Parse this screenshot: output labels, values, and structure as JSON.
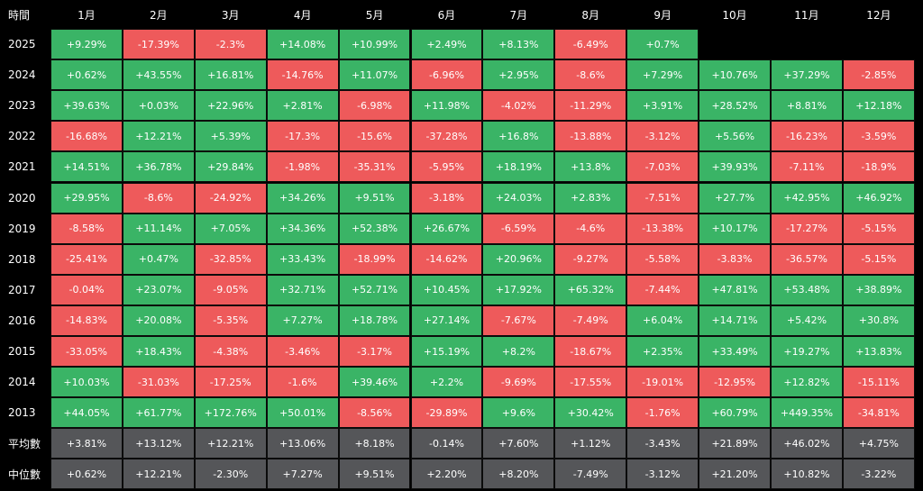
{
  "colors": {
    "positive": "#3ab466",
    "negative": "#ee5a5b",
    "summary": "#555659",
    "background": "#000000"
  },
  "chart_data": {
    "type": "table",
    "corner_label": "時間",
    "columns": [
      "1月",
      "2月",
      "3月",
      "4月",
      "5月",
      "6月",
      "7月",
      "8月",
      "9月",
      "10月",
      "11月",
      "12月"
    ],
    "rows": [
      {
        "label": "2025",
        "values": [
          "+9.29%",
          "-17.39%",
          "-2.3%",
          "+14.08%",
          "+10.99%",
          "+2.49%",
          "+8.13%",
          "-6.49%",
          "+0.7%",
          null,
          null,
          null
        ]
      },
      {
        "label": "2024",
        "values": [
          "+0.62%",
          "+43.55%",
          "+16.81%",
          "-14.76%",
          "+11.07%",
          "-6.96%",
          "+2.95%",
          "-8.6%",
          "+7.29%",
          "+10.76%",
          "+37.29%",
          "-2.85%"
        ]
      },
      {
        "label": "2023",
        "values": [
          "+39.63%",
          "+0.03%",
          "+22.96%",
          "+2.81%",
          "-6.98%",
          "+11.98%",
          "-4.02%",
          "-11.29%",
          "+3.91%",
          "+28.52%",
          "+8.81%",
          "+12.18%"
        ]
      },
      {
        "label": "2022",
        "values": [
          "-16.68%",
          "+12.21%",
          "+5.39%",
          "-17.3%",
          "-15.6%",
          "-37.28%",
          "+16.8%",
          "-13.88%",
          "-3.12%",
          "+5.56%",
          "-16.23%",
          "-3.59%"
        ]
      },
      {
        "label": "2021",
        "values": [
          "+14.51%",
          "+36.78%",
          "+29.84%",
          "-1.98%",
          "-35.31%",
          "-5.95%",
          "+18.19%",
          "+13.8%",
          "-7.03%",
          "+39.93%",
          "-7.11%",
          "-18.9%"
        ]
      },
      {
        "label": "2020",
        "values": [
          "+29.95%",
          "-8.6%",
          "-24.92%",
          "+34.26%",
          "+9.51%",
          "-3.18%",
          "+24.03%",
          "+2.83%",
          "-7.51%",
          "+27.7%",
          "+42.95%",
          "+46.92%"
        ]
      },
      {
        "label": "2019",
        "values": [
          "-8.58%",
          "+11.14%",
          "+7.05%",
          "+34.36%",
          "+52.38%",
          "+26.67%",
          "-6.59%",
          "-4.6%",
          "-13.38%",
          "+10.17%",
          "-17.27%",
          "-5.15%"
        ]
      },
      {
        "label": "2018",
        "values": [
          "-25.41%",
          "+0.47%",
          "-32.85%",
          "+33.43%",
          "-18.99%",
          "-14.62%",
          "+20.96%",
          "-9.27%",
          "-5.58%",
          "-3.83%",
          "-36.57%",
          "-5.15%"
        ]
      },
      {
        "label": "2017",
        "values": [
          "-0.04%",
          "+23.07%",
          "-9.05%",
          "+32.71%",
          "+52.71%",
          "+10.45%",
          "+17.92%",
          "+65.32%",
          "-7.44%",
          "+47.81%",
          "+53.48%",
          "+38.89%"
        ]
      },
      {
        "label": "2016",
        "values": [
          "-14.83%",
          "+20.08%",
          "-5.35%",
          "+7.27%",
          "+18.78%",
          "+27.14%",
          "-7.67%",
          "-7.49%",
          "+6.04%",
          "+14.71%",
          "+5.42%",
          "+30.8%"
        ]
      },
      {
        "label": "2015",
        "values": [
          "-33.05%",
          "+18.43%",
          "-4.38%",
          "-3.46%",
          "-3.17%",
          "+15.19%",
          "+8.2%",
          "-18.67%",
          "+2.35%",
          "+33.49%",
          "+19.27%",
          "+13.83%"
        ]
      },
      {
        "label": "2014",
        "values": [
          "+10.03%",
          "-31.03%",
          "-17.25%",
          "-1.6%",
          "+39.46%",
          "+2.2%",
          "-9.69%",
          "-17.55%",
          "-19.01%",
          "-12.95%",
          "+12.82%",
          "-15.11%"
        ]
      },
      {
        "label": "2013",
        "values": [
          "+44.05%",
          "+61.77%",
          "+172.76%",
          "+50.01%",
          "-8.56%",
          "-29.89%",
          "+9.6%",
          "+30.42%",
          "-1.76%",
          "+60.79%",
          "+449.35%",
          "-34.81%"
        ]
      },
      {
        "label": "平均數",
        "summary": true,
        "values": [
          "+3.81%",
          "+13.12%",
          "+12.21%",
          "+13.06%",
          "+8.18%",
          "-0.14%",
          "+7.60%",
          "+1.12%",
          "-3.43%",
          "+21.89%",
          "+46.02%",
          "+4.75%"
        ]
      },
      {
        "label": "中位數",
        "summary": true,
        "values": [
          "+0.62%",
          "+12.21%",
          "-2.30%",
          "+7.27%",
          "+9.51%",
          "+2.20%",
          "+8.20%",
          "-7.49%",
          "-3.12%",
          "+21.20%",
          "+10.82%",
          "-3.22%"
        ]
      }
    ]
  }
}
